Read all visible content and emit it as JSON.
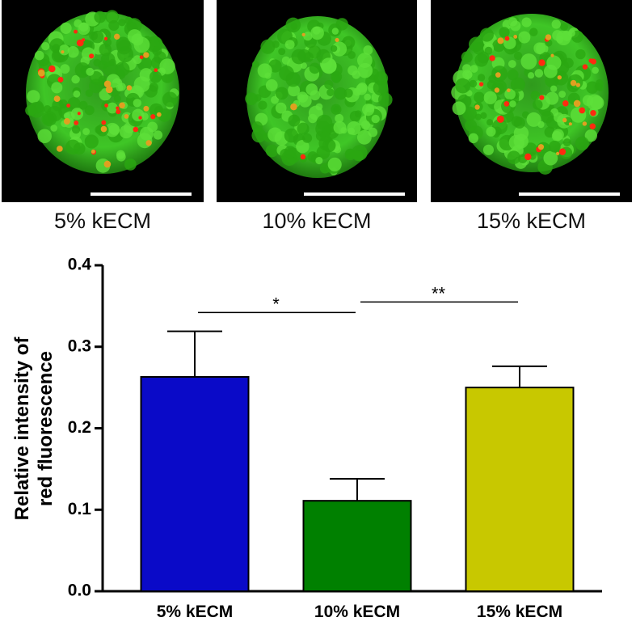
{
  "images": [
    {
      "label": "5% kECM"
    },
    {
      "label": "10% kECM"
    },
    {
      "label": "15% kECM"
    }
  ],
  "chart_data": {
    "type": "bar",
    "ylabel": [
      "Relative intensity of",
      "red fluorescence"
    ],
    "categories": [
      "5% kECM",
      "10% kECM",
      "15% kECM"
    ],
    "values": [
      0.263,
      0.111,
      0.25
    ],
    "errors": [
      0.056,
      0.027,
      0.026
    ],
    "colors": [
      "#0a0ac8",
      "#008000",
      "#c8c800"
    ],
    "ylim": [
      0,
      0.4
    ],
    "yticks": [
      {
        "value": 0,
        "label": "0.0"
      },
      0.1,
      0.2,
      0.3,
      0.4
    ],
    "annotations": [
      {
        "label": "*",
        "from": 0,
        "to": 1,
        "y": 0.342
      },
      {
        "label": "**",
        "from": 1,
        "to": 2,
        "y": 0.355
      }
    ]
  }
}
